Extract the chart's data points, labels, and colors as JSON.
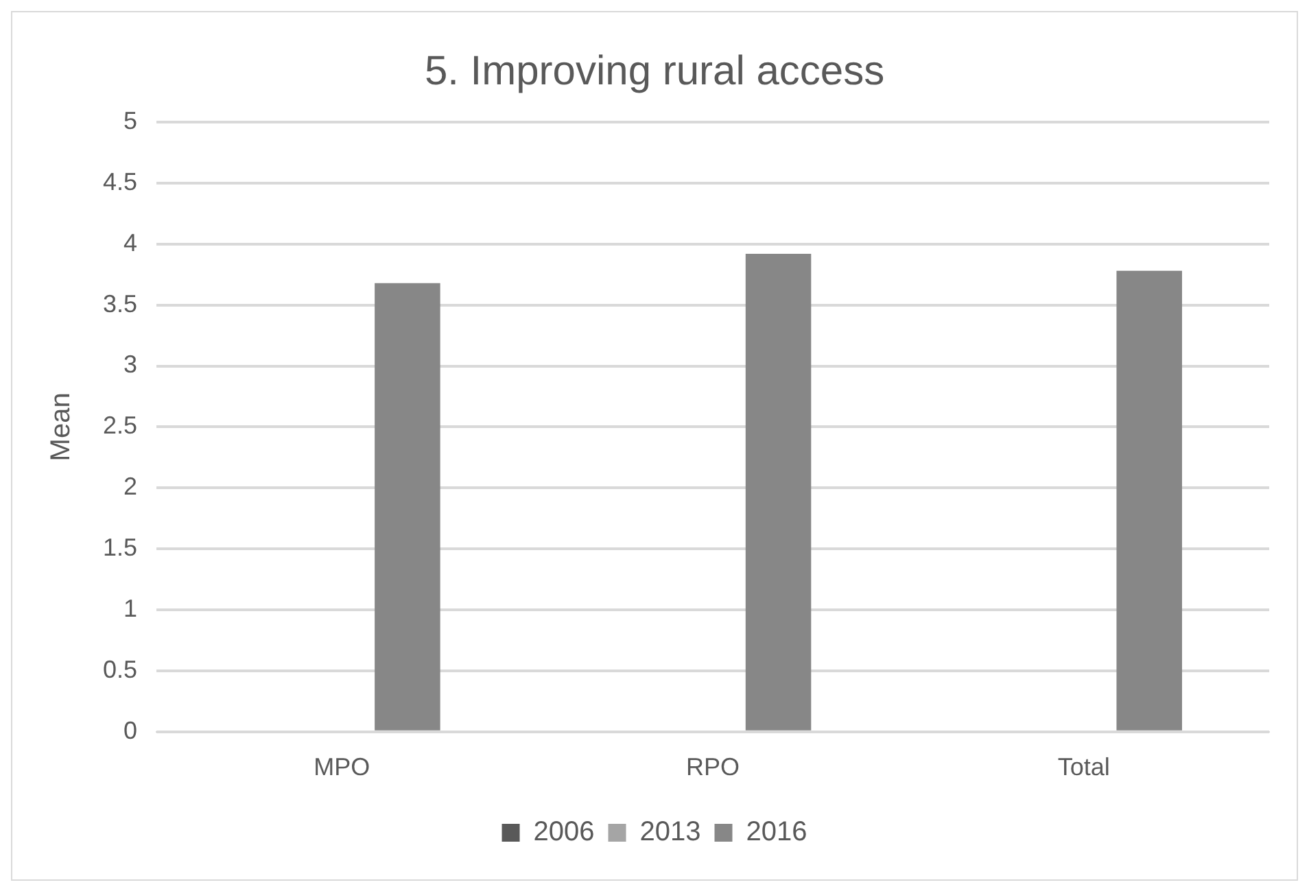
{
  "chart_data": {
    "type": "bar",
    "title": "5. Improving rural access",
    "ylabel": "Mean",
    "categories": [
      "MPO",
      "RPO",
      "Total"
    ],
    "series": [
      {
        "name": "2006",
        "color": "#595959",
        "values": [
          null,
          null,
          null
        ]
      },
      {
        "name": "2013",
        "color": "#a5a5a5",
        "values": [
          null,
          null,
          null
        ]
      },
      {
        "name": "2016",
        "color": "#878787",
        "values": [
          3.68,
          3.92,
          3.78
        ]
      }
    ],
    "ylim": [
      0,
      5
    ],
    "yticks": [
      0,
      0.5,
      1,
      1.5,
      2,
      2.5,
      3,
      3.5,
      4,
      4.5,
      5
    ],
    "grid": "y",
    "legend": "bottom"
  }
}
